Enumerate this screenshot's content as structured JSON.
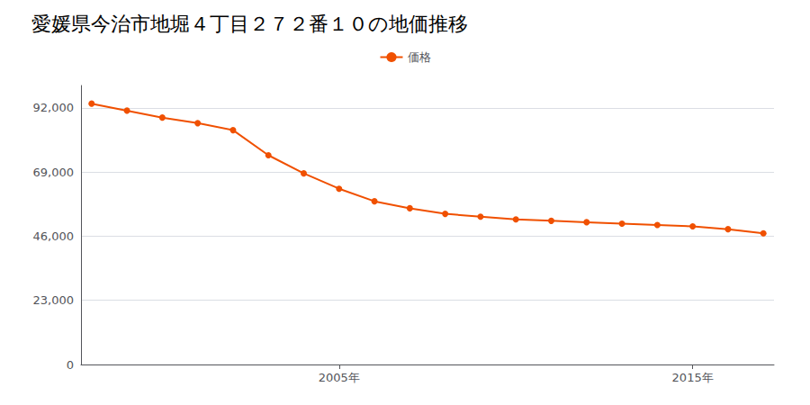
{
  "chart_data": {
    "type": "line",
    "title": "愛媛県今治市地堀４丁目２７２番１０の地価推移",
    "x": [
      1998,
      1999,
      2000,
      2001,
      2002,
      2003,
      2004,
      2005,
      2006,
      2007,
      2008,
      2009,
      2010,
      2011,
      2012,
      2013,
      2014,
      2015,
      2016,
      2017
    ],
    "series": [
      {
        "name": "価格",
        "color": "#f05000",
        "marker": "circle",
        "values": [
          93500,
          91000,
          88500,
          86500,
          84000,
          75000,
          68500,
          63000,
          58500,
          56000,
          54000,
          53000,
          52000,
          51500,
          51000,
          50500,
          50000,
          49500,
          48500,
          47000
        ]
      }
    ],
    "xlim": [
      1997.7,
      2017.3
    ],
    "xticks": [
      {
        "value": 2005,
        "label": "2005年"
      },
      {
        "value": 2015,
        "label": "2015年"
      }
    ],
    "ylim": [
      0,
      100000
    ],
    "yticks": [
      0,
      {
        "value": 23000,
        "label": "23,000"
      },
      {
        "value": 46000,
        "label": "46,000"
      },
      {
        "value": 69000,
        "label": "69,000"
      },
      {
        "value": 92000,
        "label": "92,000"
      }
    ],
    "grid": "y",
    "legend": "top"
  }
}
